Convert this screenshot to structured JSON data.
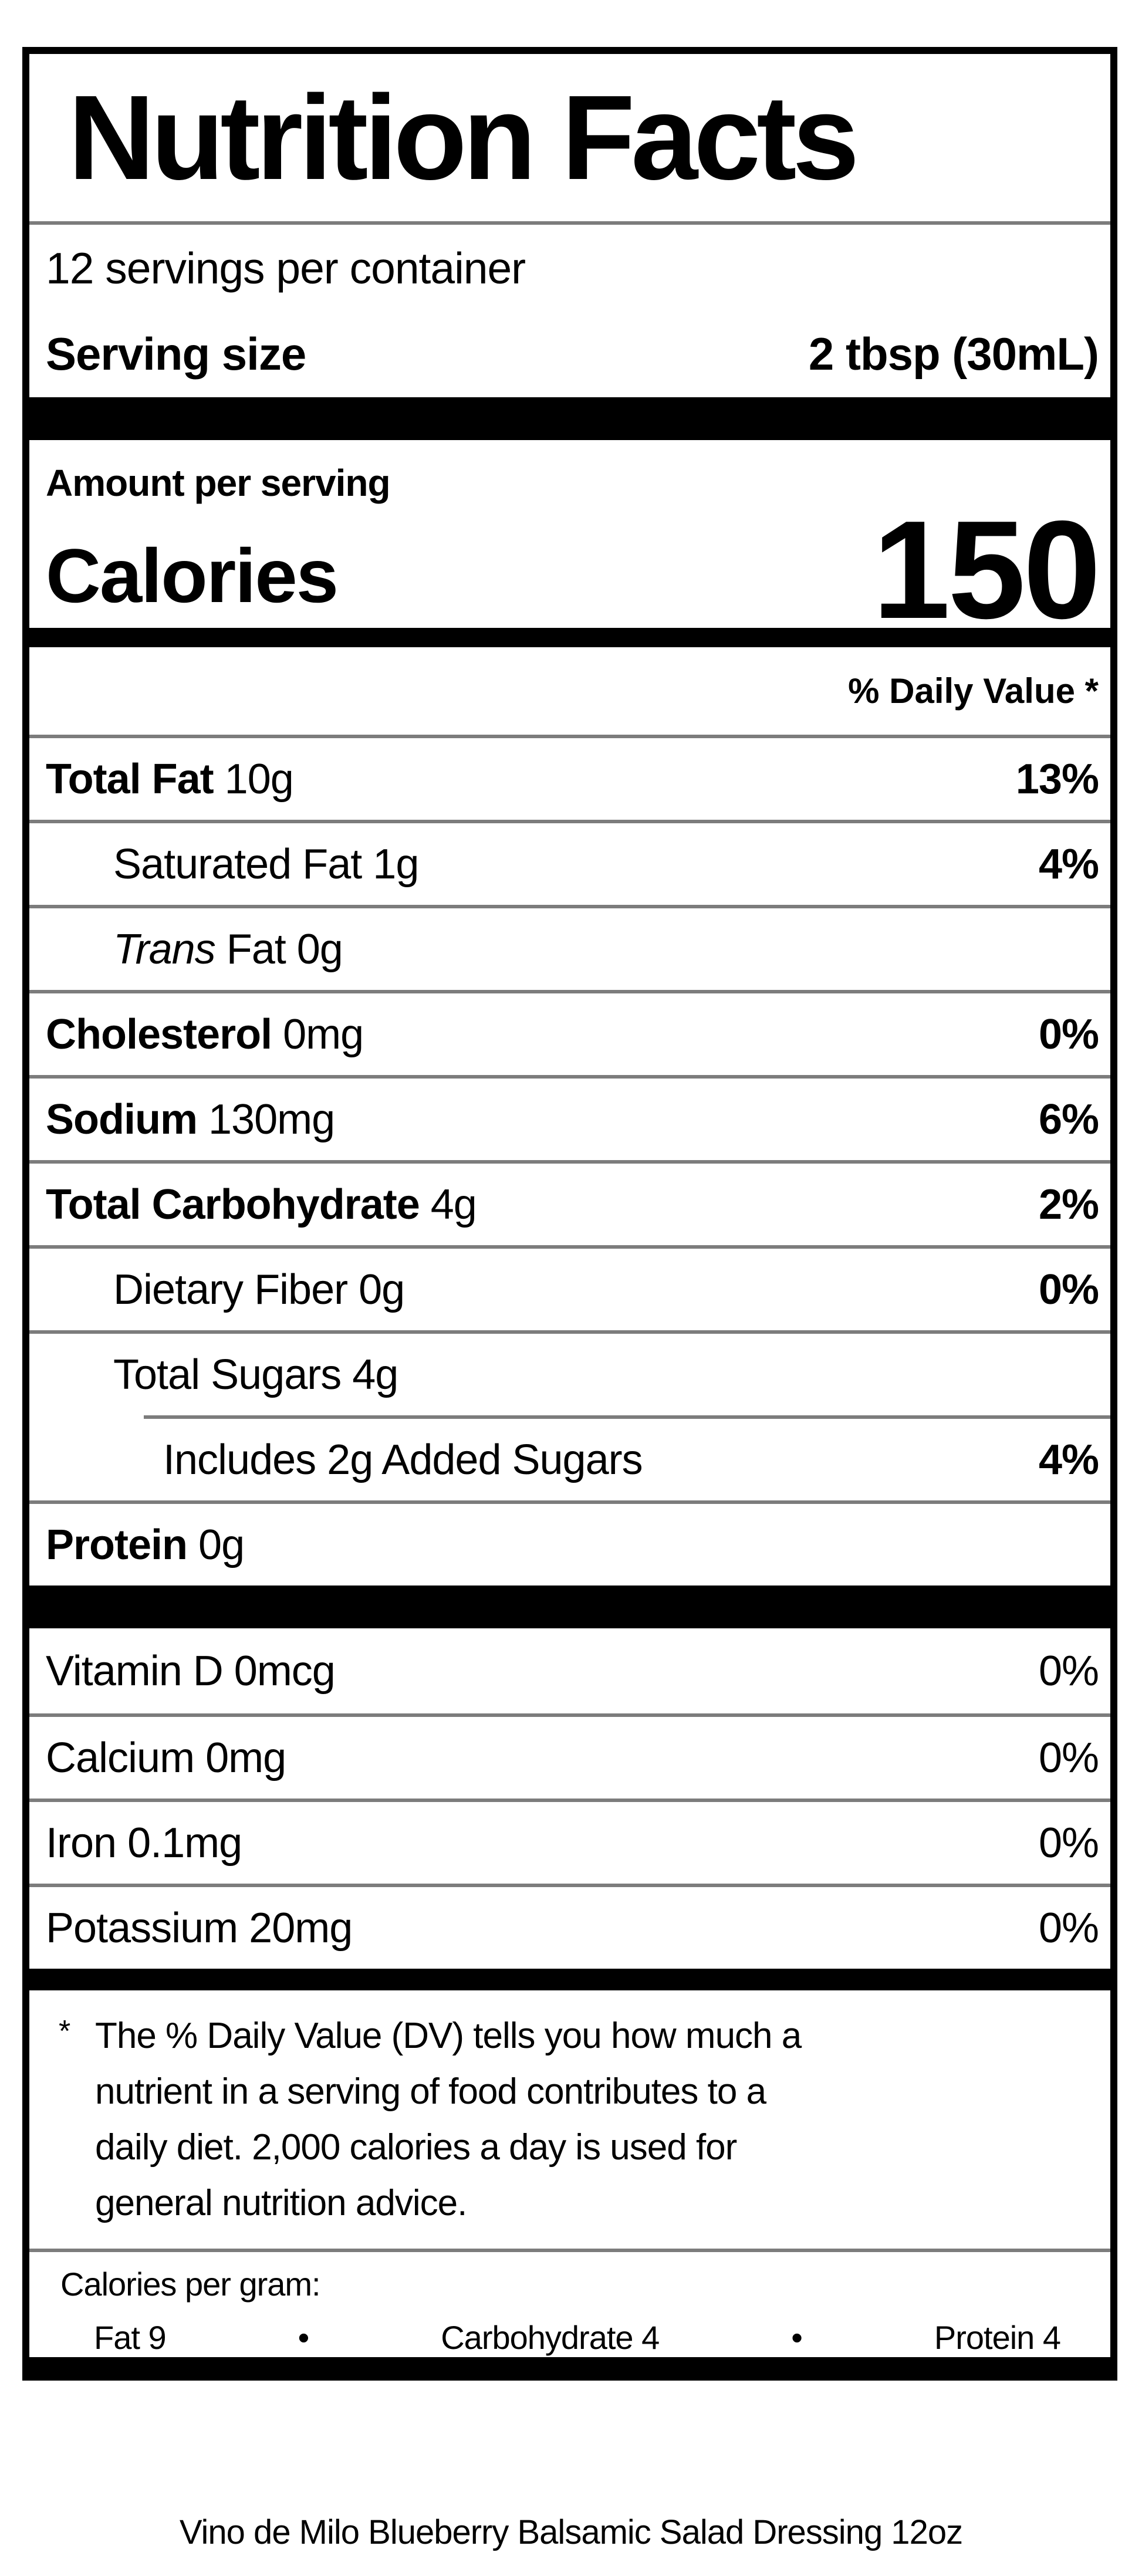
{
  "label": {
    "title": "Nutrition Facts",
    "servings_per_container": "12 servings per container",
    "serving_size_label": "Serving size",
    "serving_size_value": "2 tbsp (30mL)",
    "amount_per_serving": "Amount per serving",
    "calories_label": "Calories",
    "calories_value": "150",
    "daily_value_header": "% Daily Value *",
    "nutrients": [
      {
        "name": "Total Fat",
        "amount": " 10g",
        "dv": "13%"
      },
      {
        "name": "Saturated Fat",
        "amount": " 1g",
        "dv": "4%"
      },
      {
        "name_italic": "Trans",
        "amount": " Fat 0g",
        "dv": ""
      },
      {
        "name": "Cholesterol",
        "amount": " 0mg",
        "dv": "0%"
      },
      {
        "name": "Sodium",
        "amount": " 130mg",
        "dv": "6%"
      },
      {
        "name": "Total Carbohydrate",
        "amount": " 4g",
        "dv": "2%"
      },
      {
        "name": "Dietary Fiber",
        "amount": " 0g",
        "dv": "0%"
      },
      {
        "name": "Total Sugars",
        "amount": " 4g",
        "dv": ""
      },
      {
        "name": "Includes 2g Added Sugars",
        "amount": "",
        "dv": "4%"
      },
      {
        "name": "Protein",
        "amount": " 0g",
        "dv": ""
      },
      {
        "name": "Vitamin D",
        "amount": " 0mcg",
        "dv": "0%"
      },
      {
        "name": "Calcium",
        "amount": " 0mg",
        "dv": "0%"
      },
      {
        "name": "Iron",
        "amount": " 0.1mg",
        "dv": "0%"
      },
      {
        "name": "Potassium",
        "amount": " 20mg",
        "dv": "0%"
      }
    ],
    "footnote_marker": "*",
    "footnote": "The % Daily Value (DV) tells you how much a\nnutrient in a serving of food contributes to a\ndaily diet. 2,000 calories a day is used for\ngeneral nutrition advice.",
    "calories_per_gram_label": "Calories per gram:",
    "bullet": "•",
    "macros": [
      {
        "text": "Fat 9"
      },
      {
        "text": "Carbohydrate 4"
      },
      {
        "text": "Protein 4"
      }
    ]
  },
  "caption": "Vino de Milo Blueberry Balsamic Salad Dressing 12oz"
}
